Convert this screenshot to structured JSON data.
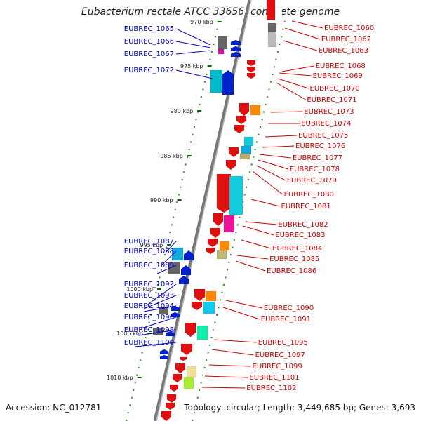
{
  "title": "Eubacterium rectale ATCC 33656, complete genome",
  "footer": {
    "accession": "Accession: NC_012781",
    "topology": "Topology: circular; Length: 3,449,685 bp; Genes: 3,693"
  },
  "colors": {
    "left_label": "#0000cc",
    "right_label": "#cc0000",
    "tick": "#006600",
    "backbone": "#888888"
  },
  "kbp_ticks": [
    "970 kbp",
    "975 kbp",
    "980 kbp",
    "985 kbp",
    "990 kbp",
    "995 kbp",
    "1000 kbp",
    "1005 kbp",
    "1010 kbp"
  ],
  "left_genes": [
    "EUBREC_1065",
    "EUBREC_1066",
    "EUBREC_1067",
    "EUBREC_1072",
    "EUBREC_1087",
    "EUBREC_1088",
    "EUBREC_1089",
    "EUBREC_1092",
    "EUBREC_1093",
    "EUBREC_1094",
    "EUBREC_1096",
    "EUBREC_1098",
    "EUBREC_1100"
  ],
  "right_genes": [
    "EUBREC_1060",
    "EUBREC_1062",
    "EUBREC_1063",
    "EUBREC_1068",
    "EUBREC_1069",
    "EUBREC_1070",
    "EUBREC_1071",
    "EUBREC_1073",
    "EUBREC_1074",
    "EUBREC_1075",
    "EUBREC_1076",
    "EUBREC_1077",
    "EUBREC_1078",
    "EUBREC_1079",
    "EUBREC_1080",
    "EUBREC_1081",
    "EUBREC_1082",
    "EUBREC_1083",
    "EUBREC_1084",
    "EUBREC_1085",
    "EUBREC_1086",
    "EUBREC_1090",
    "EUBREC_1091",
    "EUBREC_1095",
    "EUBREC_1097",
    "EUBREC_1099",
    "EUBREC_1101",
    "EUBREC_1102"
  ]
}
